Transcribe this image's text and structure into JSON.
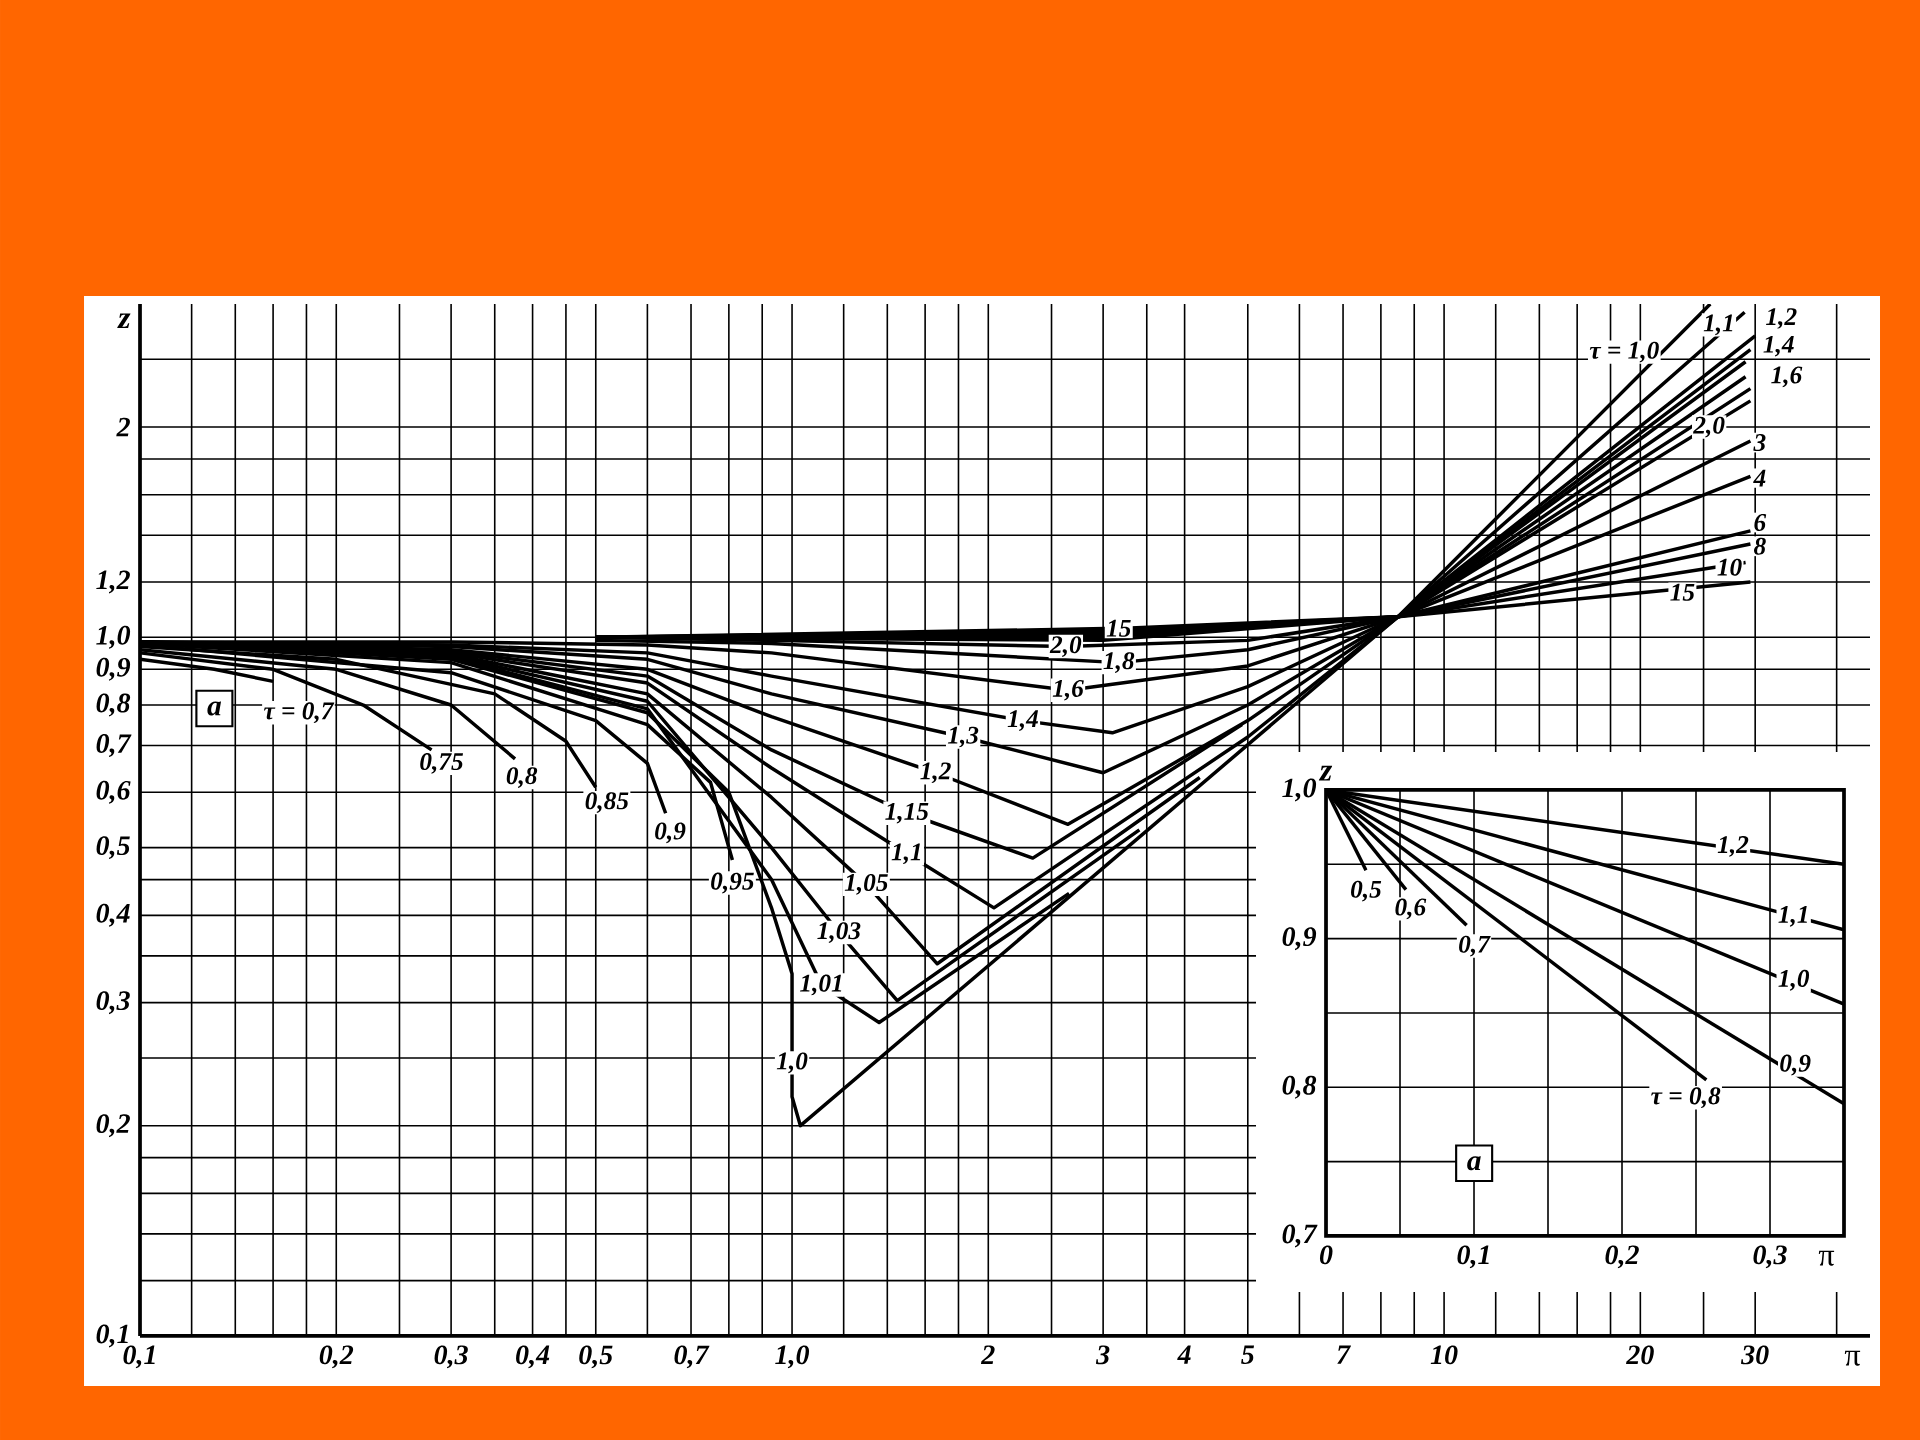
{
  "chart_data": [
    {
      "type": "line",
      "xlabel": "π",
      "ylabel": "z",
      "log": "xy",
      "grid": true,
      "xlim": [
        0.1,
        45
      ],
      "ylim": [
        0.1,
        3
      ],
      "xticks": [
        {
          "value": 0.1,
          "label": "0,1"
        },
        {
          "value": 0.12,
          "label": null
        },
        {
          "value": 0.14,
          "label": null
        },
        {
          "value": 0.16,
          "label": null
        },
        {
          "value": 0.18,
          "label": null
        },
        {
          "value": 0.2,
          "label": "0,2"
        },
        {
          "value": 0.25,
          "label": null
        },
        {
          "value": 0.3,
          "label": "0,3"
        },
        {
          "value": 0.35,
          "label": null
        },
        {
          "value": 0.4,
          "label": "0,4"
        },
        {
          "value": 0.45,
          "label": null
        },
        {
          "value": 0.5,
          "label": "0,5"
        },
        {
          "value": 0.6,
          "label": null
        },
        {
          "value": 0.7,
          "label": "0,7"
        },
        {
          "value": 0.8,
          "label": null
        },
        {
          "value": 0.9,
          "label": null
        },
        {
          "value": 1.0,
          "label": "1,0"
        },
        {
          "value": 1.2,
          "label": null
        },
        {
          "value": 1.4,
          "label": null
        },
        {
          "value": 1.6,
          "label": null
        },
        {
          "value": 1.8,
          "label": null
        },
        2,
        {
          "value": 2.5,
          "label": null
        },
        3,
        {
          "value": 3.5,
          "label": null
        },
        4,
        5,
        {
          "value": 6,
          "label": null
        },
        7,
        {
          "value": 8,
          "label": null
        },
        {
          "value": 9,
          "label": null
        },
        10,
        {
          "value": 12,
          "label": null
        },
        {
          "value": 14,
          "label": null
        },
        {
          "value": 16,
          "label": null
        },
        {
          "value": 18,
          "label": null
        },
        20,
        {
          "value": 25,
          "label": null
        },
        30,
        {
          "value": 40,
          "label": null
        }
      ],
      "yticks": [
        {
          "value": 0.1,
          "label": "0,1"
        },
        {
          "value": 0.12,
          "label": null
        },
        {
          "value": 0.14,
          "label": null
        },
        {
          "value": 0.16,
          "label": null
        },
        {
          "value": 0.18,
          "label": null
        },
        {
          "value": 0.2,
          "label": "0,2"
        },
        {
          "value": 0.25,
          "label": null
        },
        {
          "value": 0.3,
          "label": "0,3"
        },
        {
          "value": 0.35,
          "label": null
        },
        {
          "value": 0.4,
          "label": "0,4"
        },
        {
          "value": 0.45,
          "label": null
        },
        {
          "value": 0.5,
          "label": "0,5"
        },
        {
          "value": 0.6,
          "label": "0,6"
        },
        {
          "value": 0.7,
          "label": "0,7"
        },
        {
          "value": 0.8,
          "label": "0,8"
        },
        {
          "value": 0.9,
          "label": "0,9"
        },
        {
          "value": 1.0,
          "label": "1,0"
        },
        {
          "value": 1.2,
          "label": "1,2"
        },
        {
          "value": 1.4,
          "label": null
        },
        {
          "value": 1.6,
          "label": null
        },
        {
          "value": 1.8,
          "label": null
        },
        2,
        {
          "value": 2.5,
          "label": null
        }
      ],
      "series": [
        {
          "color": "#000000",
          "x": [
            0.1,
            0.13,
            0.16
          ],
          "values": [
            0.93,
            0.9,
            0.865
          ]
        },
        {
          "color": "#000000",
          "x": [
            0.1,
            0.16,
            0.22,
            0.28
          ],
          "values": [
            0.95,
            0.9,
            0.8,
            0.69
          ]
        },
        {
          "color": "#000000",
          "x": [
            0.1,
            0.2,
            0.3,
            0.376
          ],
          "values": [
            0.96,
            0.9,
            0.8,
            0.67
          ]
        },
        {
          "color": "#000000",
          "x": [
            0.1,
            0.2,
            0.35,
            0.45,
            0.5
          ],
          "values": [
            0.97,
            0.93,
            0.83,
            0.71,
            0.61
          ]
        },
        {
          "color": "#000000",
          "x": [
            0.1,
            0.3,
            0.5,
            0.6,
            0.64
          ],
          "values": [
            0.975,
            0.89,
            0.76,
            0.66,
            0.56
          ]
        },
        {
          "color": "#000000",
          "x": [
            0.1,
            0.3,
            0.6,
            0.75,
            0.81
          ],
          "values": [
            0.98,
            0.92,
            0.75,
            0.62,
            0.48
          ]
        },
        {
          "color": "#000000",
          "x": [
            0.1,
            0.3,
            0.6,
            0.8,
            0.93,
            1.0,
            1.0,
            1.03,
            8.5,
            25.6
          ],
          "values": [
            0.985,
            0.93,
            0.78,
            0.6,
            0.41,
            0.33,
            0.22,
            0.2,
            1.07,
            3.0
          ]
        },
        {
          "color": "#000000",
          "x": [
            0.1,
            0.3,
            0.6,
            0.93,
            1.11,
            1.36,
            2.66
          ],
          "values": [
            0.985,
            0.935,
            0.79,
            0.45,
            0.318,
            0.281,
            0.43
          ]
        },
        {
          "color": "#000000",
          "x": [
            0.1,
            0.3,
            0.6,
            0.93,
            1.18,
            1.45,
            3.41
          ],
          "values": [
            0.985,
            0.94,
            0.81,
            0.5,
            0.378,
            0.302,
            0.53
          ]
        },
        {
          "color": "#000000",
          "x": [
            0.1,
            0.3,
            0.6,
            0.93,
            1.3,
            1.67,
            4.22
          ],
          "values": [
            0.985,
            0.945,
            0.83,
            0.59,
            0.443,
            0.341,
            0.63
          ]
        },
        {
          "color": "#000000",
          "x": [
            0.1,
            0.3,
            0.6,
            0.93,
            1.5,
            2.04,
            5,
            8.5,
            28.9
          ],
          "values": [
            0.985,
            0.95,
            0.86,
            0.65,
            0.49,
            0.41,
            0.72,
            1.07,
            2.92
          ]
        },
        {
          "color": "#000000",
          "x": [
            0.1,
            0.3,
            0.6,
            0.93,
            1.5,
            2.34,
            4.9
          ],
          "values": [
            0.985,
            0.955,
            0.88,
            0.69,
            0.56,
            0.483,
            0.75
          ]
        },
        {
          "color": "#000000",
          "x": [
            0.1,
            0.3,
            0.6,
            0.93,
            1.66,
            2.65,
            5,
            8.5,
            30
          ],
          "values": [
            0.985,
            0.96,
            0.9,
            0.77,
            0.64,
            0.54,
            0.76,
            1.07,
            2.7
          ]
        },
        {
          "color": "#000000",
          "x": [
            0.1,
            0.3,
            0.6,
            0.93,
            1.83,
            3,
            5,
            8.5,
            29.5
          ],
          "values": [
            0.985,
            0.97,
            0.93,
            0.83,
            0.72,
            0.64,
            0.8,
            1.07,
            2.58
          ]
        },
        {
          "color": "#000000",
          "x": [
            0.1,
            0.3,
            0.6,
            0.93,
            2.26,
            3.1,
            5,
            8.5,
            29
          ],
          "values": [
            0.985,
            0.975,
            0.95,
            0.88,
            0.76,
            0.73,
            0.85,
            1.07,
            2.48
          ]
        },
        {
          "color": "#000000",
          "x": [
            0.1,
            0.3,
            0.6,
            0.93,
            2.65,
            5,
            8.5,
            29
          ],
          "values": [
            0.985,
            0.985,
            0.975,
            0.95,
            0.84,
            0.91,
            1.07,
            2.36
          ]
        },
        {
          "color": "#000000",
          "x": [
            0.5,
            0.93,
            3.17,
            5,
            8.5,
            29.5
          ],
          "values": [
            0.99,
            0.98,
            0.92,
            0.96,
            1.07,
            2.27
          ]
        },
        {
          "color": "#000000",
          "x": [
            0.5,
            0.93,
            2.63,
            5,
            8.5,
            29.5
          ],
          "values": [
            1.0,
            0.99,
            0.97,
            0.99,
            1.07,
            2.18
          ]
        },
        {
          "color": "#000000",
          "x": [
            0.5,
            3,
            8.5,
            29.5
          ],
          "values": [
            1.0,
            0.99,
            1.07,
            1.91
          ]
        },
        {
          "color": "#000000",
          "x": [
            0.5,
            3,
            8.5,
            29.5
          ],
          "values": [
            1.0,
            1.0,
            1.07,
            1.7
          ]
        },
        {
          "color": "#000000",
          "x": [
            0.5,
            3,
            8.5,
            29.5
          ],
          "values": [
            1.0,
            1.01,
            1.07,
            1.42
          ]
        },
        {
          "color": "#000000",
          "x": [
            0.5,
            3,
            8.5,
            29.5
          ],
          "values": [
            1.0,
            1.015,
            1.07,
            1.36
          ]
        },
        {
          "color": "#000000",
          "x": [
            0.5,
            3,
            8.5,
            29
          ],
          "values": [
            1.0,
            1.02,
            1.07,
            1.28
          ]
        },
        {
          "color": "#000000",
          "x": [
            0.5,
            3.17,
            8.5,
            29.5
          ],
          "values": [
            1.0,
            1.03,
            1.07,
            1.2
          ]
        }
      ],
      "annotations": [
        "a",
        {
          "text": "τ = 0,7",
          "x": 0.175,
          "y": 0.78
        },
        {
          "text": "0,75",
          "x": 0.29,
          "y": 0.66
        },
        {
          "text": "0,8",
          "x": 0.385,
          "y": 0.63
        },
        {
          "text": "0,85",
          "x": 0.52,
          "y": 0.58
        },
        {
          "text": "0,9",
          "x": 0.65,
          "y": 0.525
        },
        {
          "text": "0,95",
          "x": 0.81,
          "y": 0.445
        },
        {
          "text": "1,0",
          "x": 1.0,
          "y": 0.246
        },
        {
          "text": "1,01",
          "x": 1.11,
          "y": 0.318
        },
        {
          "text": "1,03",
          "x": 1.18,
          "y": 0.378
        },
        {
          "text": "1,05",
          "x": 1.3,
          "y": 0.443
        },
        {
          "text": "1,1",
          "x": 1.5,
          "y": 0.49
        },
        {
          "text": "1,15",
          "x": 1.5,
          "y": 0.56
        },
        {
          "text": "1,2",
          "x": 1.66,
          "y": 0.64
        },
        {
          "text": "1,3",
          "x": 1.83,
          "y": 0.72
        },
        {
          "text": "1,4",
          "x": 2.26,
          "y": 0.76
        },
        {
          "text": "1,6",
          "x": 2.65,
          "y": 0.84
        },
        {
          "text": "1,8",
          "x": 3.17,
          "y": 0.92
        },
        {
          "text": "2,0",
          "x": 2.63,
          "y": 0.97
        },
        {
          "text": "15",
          "x": 3.17,
          "y": 1.03
        },
        {
          "text": "τ = 1,0",
          "x": 18.9,
          "y": 2.56
        },
        {
          "text": "1,1",
          "x": 26.4,
          "y": 2.8
        },
        {
          "text": "1,2",
          "x": 32.9,
          "y": 2.86
        },
        {
          "text": "1,4",
          "x": 32.6,
          "y": 2.61
        },
        {
          "text": "1,6",
          "x": 33.5,
          "y": 2.36
        },
        {
          "text": "2,0",
          "x": 25.5,
          "y": 2.0
        },
        {
          "text": "3",
          "x": 30.5,
          "y": 1.9
        },
        {
          "text": "4",
          "x": 30.5,
          "y": 1.69
        },
        {
          "text": "6",
          "x": 30.5,
          "y": 1.46
        },
        {
          "text": "8",
          "x": 30.5,
          "y": 1.35
        },
        {
          "text": "10",
          "x": 27.4,
          "y": 1.26
        },
        {
          "text": "15",
          "x": 23.2,
          "y": 1.16
        }
      ]
    },
    {
      "type": "line",
      "xlabel": "π",
      "ylabel": "z",
      "grid": true,
      "xlim": [
        0,
        0.35
      ],
      "ylim": [
        0.7,
        1.0
      ],
      "xticks": [
        0,
        {
          "value": 0.05,
          "label": null
        },
        {
          "value": 0.1,
          "label": "0,1"
        },
        {
          "value": 0.15,
          "label": null
        },
        {
          "value": 0.2,
          "label": "0,2"
        },
        {
          "value": 0.25,
          "label": null
        },
        {
          "value": 0.3,
          "label": "0,3"
        }
      ],
      "yticks": [
        {
          "value": 0.7,
          "label": "0,7"
        },
        {
          "value": 0.75,
          "label": null
        },
        {
          "value": 0.8,
          "label": "0,8"
        },
        {
          "value": 0.85,
          "label": null
        },
        {
          "value": 0.9,
          "label": "0,9"
        },
        {
          "value": 0.95,
          "label": null
        },
        {
          "value": 1.0,
          "label": "1,0"
        }
      ],
      "series": [
        {
          "color": "#000000",
          "x": [
            0,
            0.027
          ],
          "values": [
            1.0,
            0.946
          ]
        },
        {
          "color": "#000000",
          "x": [
            0,
            0.054
          ],
          "values": [
            1.0,
            0.933
          ]
        },
        {
          "color": "#000000",
          "x": [
            0,
            0.095
          ],
          "values": [
            1.0,
            0.909
          ]
        },
        {
          "color": "#000000",
          "x": [
            0,
            0.257
          ],
          "values": [
            1.0,
            0.805
          ]
        },
        {
          "color": "#000000",
          "x": [
            0,
            0.35
          ],
          "values": [
            1.0,
            0.789
          ]
        },
        {
          "color": "#000000",
          "x": [
            0,
            0.35
          ],
          "values": [
            1.0,
            0.856
          ]
        },
        {
          "color": "#000000",
          "x": [
            0,
            0.35
          ],
          "values": [
            1.0,
            0.906
          ]
        },
        {
          "color": "#000000",
          "x": [
            0,
            0.35
          ],
          "values": [
            1.0,
            0.95
          ]
        }
      ],
      "annotations": [
        "a",
        {
          "text": "0,5",
          "x": 0.027,
          "y": 0.932
        },
        {
          "text": "0,6",
          "x": 0.057,
          "y": 0.92
        },
        {
          "text": "0,7",
          "x": 0.1,
          "y": 0.895
        },
        {
          "text": "τ = 0,8",
          "x": 0.243,
          "y": 0.793
        },
        {
          "text": "0,9",
          "x": 0.317,
          "y": 0.815
        },
        {
          "text": "1,0",
          "x": 0.316,
          "y": 0.872
        },
        {
          "text": "1,1",
          "x": 0.316,
          "y": 0.915
        },
        {
          "text": "1,2",
          "x": 0.275,
          "y": 0.962
        }
      ]
    }
  ]
}
